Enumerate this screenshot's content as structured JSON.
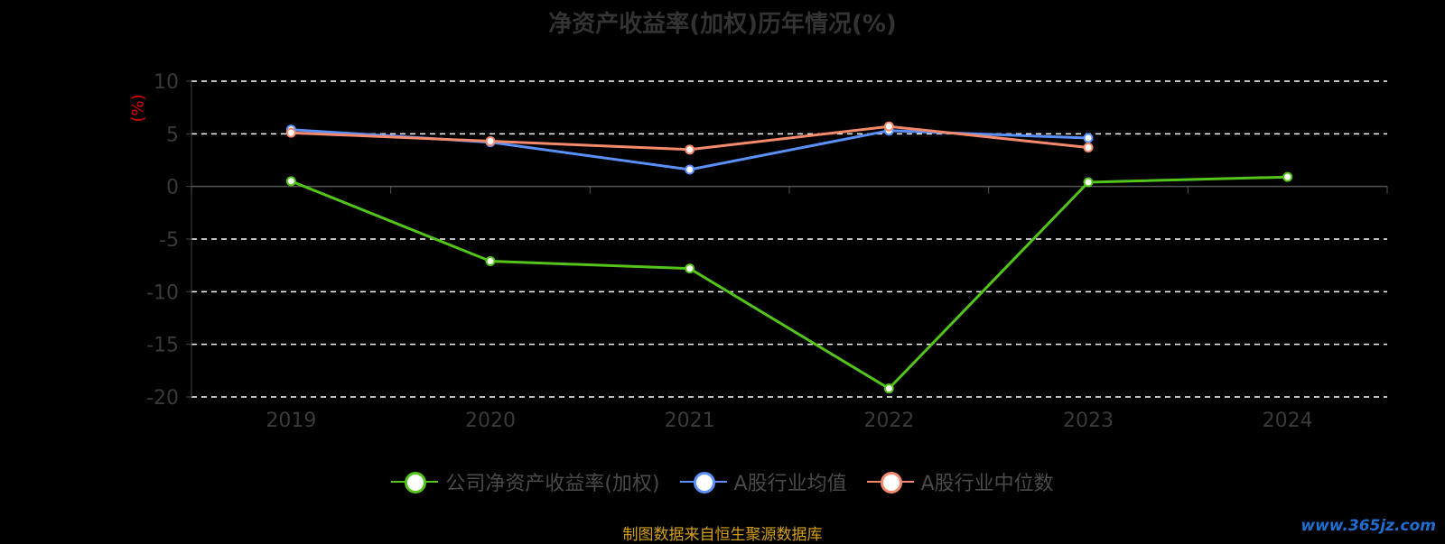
{
  "chart_data": {
    "type": "line",
    "title": "净资产收益率(加权)历年情况(%)",
    "ylabel": "(%)",
    "xlabel": "",
    "categories": [
      "2019",
      "2020",
      "2021",
      "2022",
      "2023",
      "2024"
    ],
    "ylim": [
      -20,
      10
    ],
    "yticks": [
      10,
      5,
      0,
      -5,
      -10,
      -15,
      -20
    ],
    "grid": true,
    "legend_position": "bottom",
    "series": [
      {
        "name": "公司净资产收益率(加权)",
        "color": "#52c41a",
        "values": [
          0.5,
          -7.1,
          -7.8,
          -19.2,
          0.4,
          0.9
        ]
      },
      {
        "name": "A股行业均值",
        "color": "#5b8ff9",
        "values": [
          5.4,
          4.2,
          1.6,
          5.3,
          4.6,
          null
        ]
      },
      {
        "name": "A股行业中位数",
        "color": "#f5896b",
        "values": [
          5.1,
          4.3,
          3.5,
          5.7,
          3.7,
          null
        ]
      }
    ]
  },
  "footer": {
    "source": "制图数据来自恒生聚源数据库",
    "watermark": "www.365jz.com"
  }
}
